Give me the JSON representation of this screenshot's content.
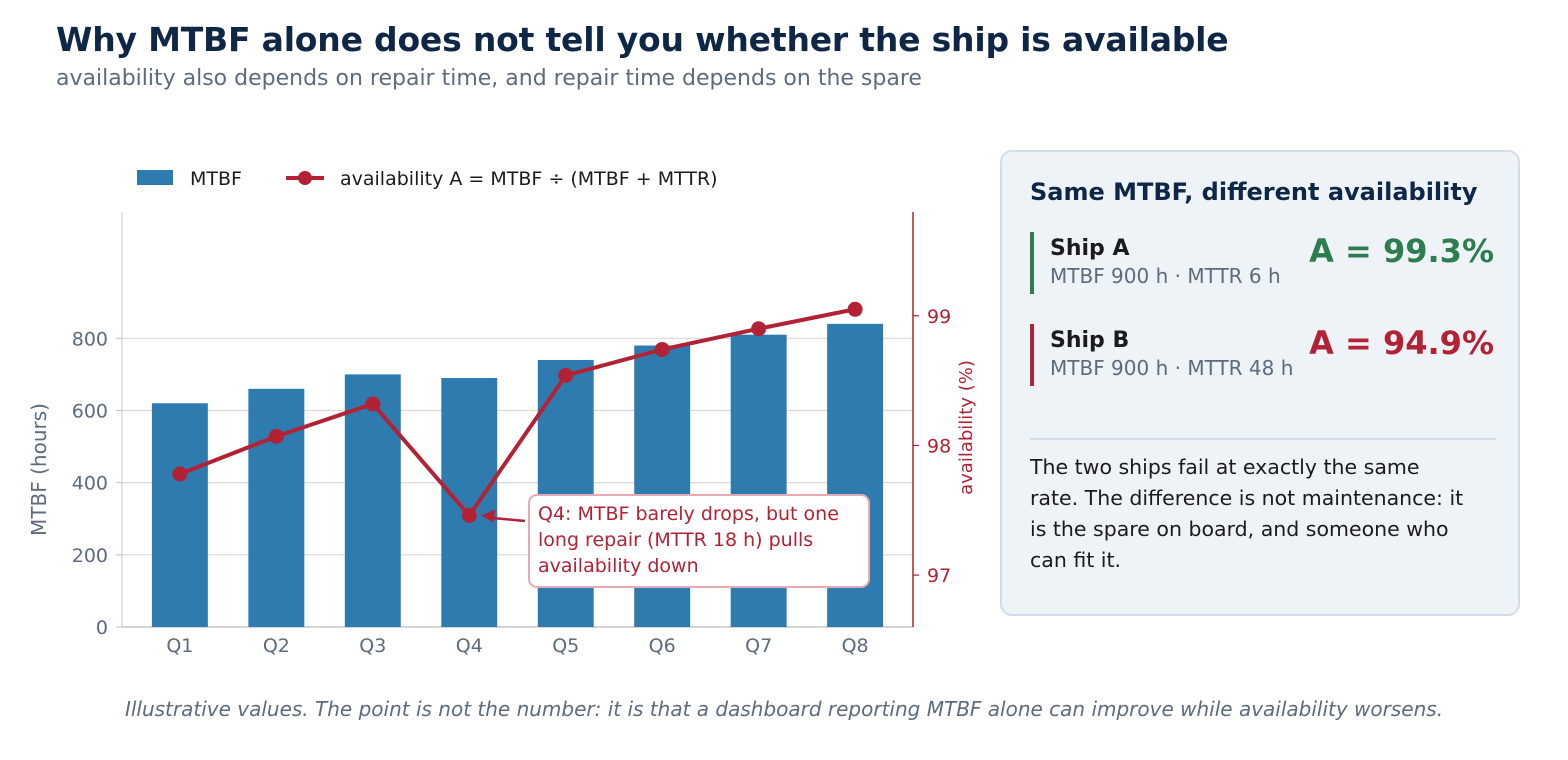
{
  "header": {
    "title": "Why MTBF alone does not tell you whether the ship is available",
    "subtitle": "availability also depends on repair time, and repair time depends on the spare"
  },
  "chart_data": {
    "type": "bar",
    "categories": [
      "Q1",
      "Q2",
      "Q3",
      "Q4",
      "Q5",
      "Q6",
      "Q7",
      "Q8"
    ],
    "series": [
      {
        "name": "MTBF",
        "type": "bar",
        "axis": "left",
        "values": [
          620,
          660,
          700,
          690,
          740,
          780,
          810,
          840
        ]
      },
      {
        "name": "availability A = MTBF ÷ (MTBF + MTTR)",
        "type": "line",
        "axis": "right",
        "values": [
          97.78,
          98.07,
          98.32,
          97.46,
          98.54,
          98.74,
          98.9,
          99.05
        ]
      }
    ],
    "ylabel": "MTBF (hours)",
    "y2label": "availability (%)",
    "ylim": [
      0,
      1150
    ],
    "y2lim": [
      96.6,
      99.8
    ],
    "yticks": [
      "0",
      "200",
      "400",
      "600",
      "800"
    ],
    "y2ticks": [
      "97",
      "98",
      "99"
    ],
    "grid": true,
    "legend_position": "top-left",
    "annotation": {
      "target": "Q4",
      "lines": [
        "Q4: MTBF barely drops, but one",
        "long repair (MTTR 18 h) pulls",
        "availability down"
      ]
    },
    "colors": {
      "bar": "#2e7bb0",
      "line": "#b22234",
      "grid": "#d9d9d9",
      "axis_text": "#5d6b7c"
    }
  },
  "panel": {
    "title": "Same MTBF, different availability",
    "ships": [
      {
        "name": "Ship A",
        "detail": "MTBF 900 h · MTTR 6 h",
        "value": "A = 99.3%",
        "color": "#2e7d4f"
      },
      {
        "name": "Ship B",
        "detail": "MTBF 900 h · MTTR 48 h",
        "value": "A = 94.9%",
        "color": "#b22234"
      }
    ],
    "body": "The two ships fail at exactly the same rate. The difference is not maintenance: it is the spare on board, and someone who can fit it."
  },
  "footnote": "Illustrative values. The point is not the number: it is that a dashboard reporting MTBF alone can improve while availability worsens."
}
